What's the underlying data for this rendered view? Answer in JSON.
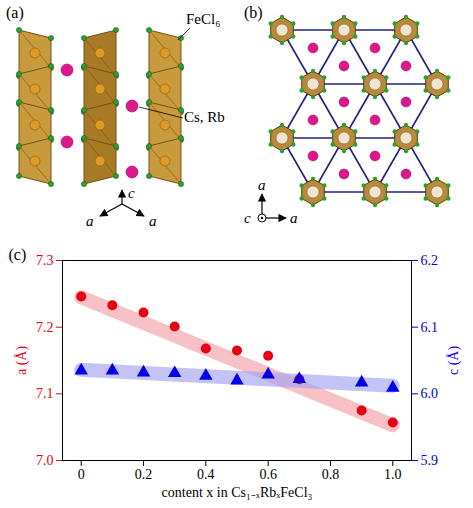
{
  "panels": [
    {
      "label": "(a)",
      "texts": [
        "FeCl₆",
        "Cs, Rb"
      ],
      "axes": [
        "a",
        "a",
        "c"
      ]
    },
    {
      "label": "(b)",
      "axes": [
        "a",
        "a",
        "c"
      ]
    }
  ],
  "chart_data": {
    "type": "scatter",
    "title": "(c)",
    "x_label": "content x in Cs₁₋ₓRbₓFeCl₃",
    "y_label": "a (Å)",
    "y2_label": "c (Å)",
    "x": [
      0,
      0.1,
      0.2,
      0.3,
      0.4,
      0.5,
      0.6,
      0.7,
      0.9,
      1.0
    ],
    "series": [
      {
        "color": "#e60012",
        "marker": "circle",
        "values": [
          7.246,
          7.233,
          7.222,
          7.201,
          7.168,
          7.165,
          7.157,
          7.122,
          7.075,
          7.057
        ],
        "fit": {
          "x": [
            0,
            1
          ],
          "values": [
            7.245,
            7.053
          ],
          "color": "#f2a0a6"
        }
      },
      {
        "color": "#0000e6",
        "marker": "triangle",
        "axis": "y2",
        "values": [
          6.035,
          6.035,
          6.032,
          6.031,
          6.027,
          6.02,
          6.029,
          6.022,
          6.017,
          6.009
        ],
        "fit": {
          "x": [
            0,
            1
          ],
          "values": [
            6.036,
            6.012
          ],
          "color": "#a3a3f5"
        }
      }
    ],
    "xlim": [
      -0.06,
      1.06
    ],
    "xticks": [
      0,
      0.2,
      0.4,
      0.6,
      0.8,
      {
        "value": 1,
        "label": "1.0"
      }
    ],
    "ylim": [
      7.0,
      7.3
    ],
    "yticks": [
      {
        "value": 7,
        "label": "7.0"
      },
      7.1,
      7.2,
      7.3
    ],
    "y2lim": [
      5.9,
      6.2
    ],
    "y2ticks": [
      5.9,
      {
        "value": 6,
        "label": "6.0"
      },
      6.1,
      6.2
    ]
  }
}
